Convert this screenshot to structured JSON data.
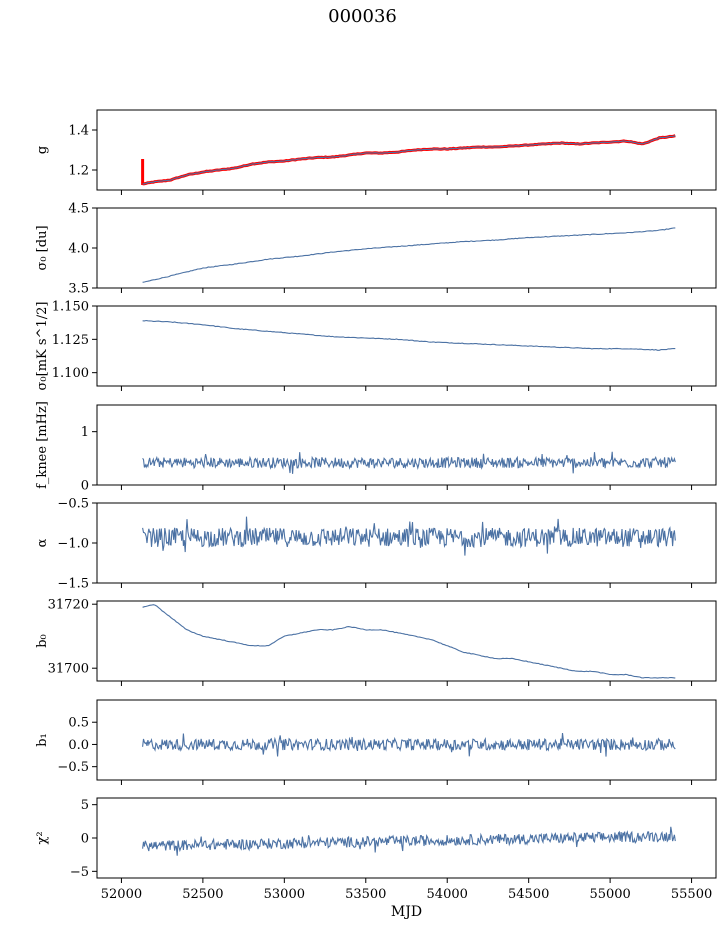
{
  "title": "000036",
  "chart_data": [
    {
      "type": "line",
      "id": "g",
      "ylabel": "g",
      "ylim": [
        1.1,
        1.5
      ],
      "yticks": [
        1.2,
        1.4
      ],
      "xlim": [
        51850,
        55650
      ],
      "color": "#4c72a4",
      "overlay_color": "#ff0000",
      "series": [
        {
          "x": [
            52130,
            52200,
            52300,
            52400,
            52500,
            52600,
            52700,
            52800,
            52900,
            53000,
            53100,
            53200,
            53300,
            53400,
            53500,
            53600,
            53700,
            53800,
            53900,
            54000,
            54100,
            54200,
            54300,
            54400,
            54500,
            54600,
            54700,
            54800,
            54900,
            55000,
            55100,
            55200,
            55300,
            55400
          ],
          "y": [
            1.13,
            1.14,
            1.15,
            1.175,
            1.19,
            1.2,
            1.21,
            1.23,
            1.24,
            1.245,
            1.255,
            1.262,
            1.265,
            1.275,
            1.285,
            1.285,
            1.29,
            1.3,
            1.305,
            1.305,
            1.31,
            1.315,
            1.315,
            1.32,
            1.325,
            1.33,
            1.335,
            1.33,
            1.335,
            1.34,
            1.345,
            1.33,
            1.36,
            1.37
          ]
        }
      ]
    },
    {
      "type": "line",
      "id": "sigma0_du",
      "ylabel": "σ₀ [du]",
      "ylim": [
        3.5,
        4.5
      ],
      "yticks": [
        3.5,
        4.0,
        4.5
      ],
      "xlim": [
        51850,
        55650
      ],
      "color": "#4c72a4",
      "series": [
        {
          "x": [
            52130,
            52300,
            52500,
            52700,
            52900,
            53100,
            53300,
            53500,
            53700,
            53900,
            54100,
            54300,
            54500,
            54700,
            54900,
            55100,
            55300,
            55400
          ],
          "y": [
            3.57,
            3.65,
            3.75,
            3.8,
            3.86,
            3.9,
            3.95,
            3.99,
            4.02,
            4.05,
            4.08,
            4.1,
            4.13,
            4.15,
            4.17,
            4.19,
            4.22,
            4.25
          ]
        }
      ]
    },
    {
      "type": "line",
      "id": "sigma0_mk",
      "ylabel": "σ₀[mK s^1/2]",
      "ylim": [
        1.09,
        1.15
      ],
      "yticks": [
        1.1,
        1.125,
        1.15
      ],
      "xlim": [
        51850,
        55650
      ],
      "color": "#4c72a4",
      "series": [
        {
          "x": [
            52130,
            52300,
            52500,
            52700,
            52900,
            53100,
            53300,
            53500,
            53700,
            53900,
            54100,
            54300,
            54500,
            54700,
            54900,
            55100,
            55300,
            55400
          ],
          "y": [
            1.139,
            1.138,
            1.136,
            1.133,
            1.131,
            1.129,
            1.127,
            1.126,
            1.125,
            1.123,
            1.122,
            1.121,
            1.12,
            1.119,
            1.118,
            1.118,
            1.117,
            1.118
          ]
        }
      ]
    },
    {
      "type": "line",
      "id": "fknee",
      "ylabel": "f_knee [mHz]",
      "ylim": [
        0,
        1.5
      ],
      "yticks": [
        0,
        1
      ],
      "xlim": [
        51850,
        55650
      ],
      "color": "#4c72a4",
      "series": [
        {
          "x": [
            52130,
            55400
          ],
          "y": [
            0.42,
            0.42
          ],
          "noise": 0.1
        }
      ]
    },
    {
      "type": "line",
      "id": "alpha",
      "ylabel": "α",
      "ylim": [
        -1.5,
        -0.5
      ],
      "yticks": [
        -1.5,
        -1.0,
        -0.5
      ],
      "xlim": [
        51850,
        55650
      ],
      "color": "#4c72a4",
      "series": [
        {
          "x": [
            52130,
            55400
          ],
          "y": [
            -0.93,
            -0.93
          ],
          "noise": 0.12
        }
      ]
    },
    {
      "type": "line",
      "id": "b0",
      "ylabel": "b₀",
      "ylim": [
        31696,
        31721
      ],
      "yticks": [
        31700,
        31720
      ],
      "xlim": [
        51850,
        55650
      ],
      "color": "#4c72a4",
      "series": [
        {
          "x": [
            52130,
            52200,
            52300,
            52400,
            52500,
            52600,
            52700,
            52800,
            52900,
            53000,
            53100,
            53200,
            53300,
            53400,
            53500,
            53600,
            53700,
            53800,
            53900,
            54000,
            54100,
            54200,
            54300,
            54400,
            54500,
            54600,
            54700,
            54800,
            54900,
            55000,
            55100,
            55200,
            55300,
            55400
          ],
          "y": [
            31719,
            31720,
            31716,
            31712,
            31710,
            31709,
            31708,
            31707,
            31707,
            31710,
            31711,
            31712,
            31712,
            31713,
            31712,
            31712,
            31711,
            31710,
            31709,
            31707,
            31705,
            31704,
            31703,
            31703,
            31702,
            31701,
            31700,
            31699,
            31699,
            31698,
            31698,
            31697,
            31697,
            31697
          ]
        }
      ]
    },
    {
      "type": "line",
      "id": "b1",
      "ylabel": "b₁",
      "ylim": [
        -0.8,
        1.0
      ],
      "yticks": [
        -0.5,
        0.0,
        0.5
      ],
      "xlim": [
        51850,
        55650
      ],
      "color": "#4c72a4",
      "series": [
        {
          "x": [
            52130,
            55400
          ],
          "y": [
            0.0,
            0.0
          ],
          "noise": 0.13
        }
      ]
    },
    {
      "type": "line",
      "id": "chi2",
      "ylabel": "χ²",
      "ylim": [
        -6,
        6
      ],
      "yticks": [
        -5,
        0,
        5
      ],
      "xlim": [
        51850,
        55650
      ],
      "color": "#4c72a4",
      "xlabel": "MJD",
      "xticks": [
        52000,
        52500,
        53000,
        53500,
        54000,
        54500,
        55000,
        55500
      ],
      "series": [
        {
          "x": [
            52130,
            55400
          ],
          "y": [
            -1.2,
            0.3
          ],
          "noise": 0.8
        }
      ]
    }
  ]
}
